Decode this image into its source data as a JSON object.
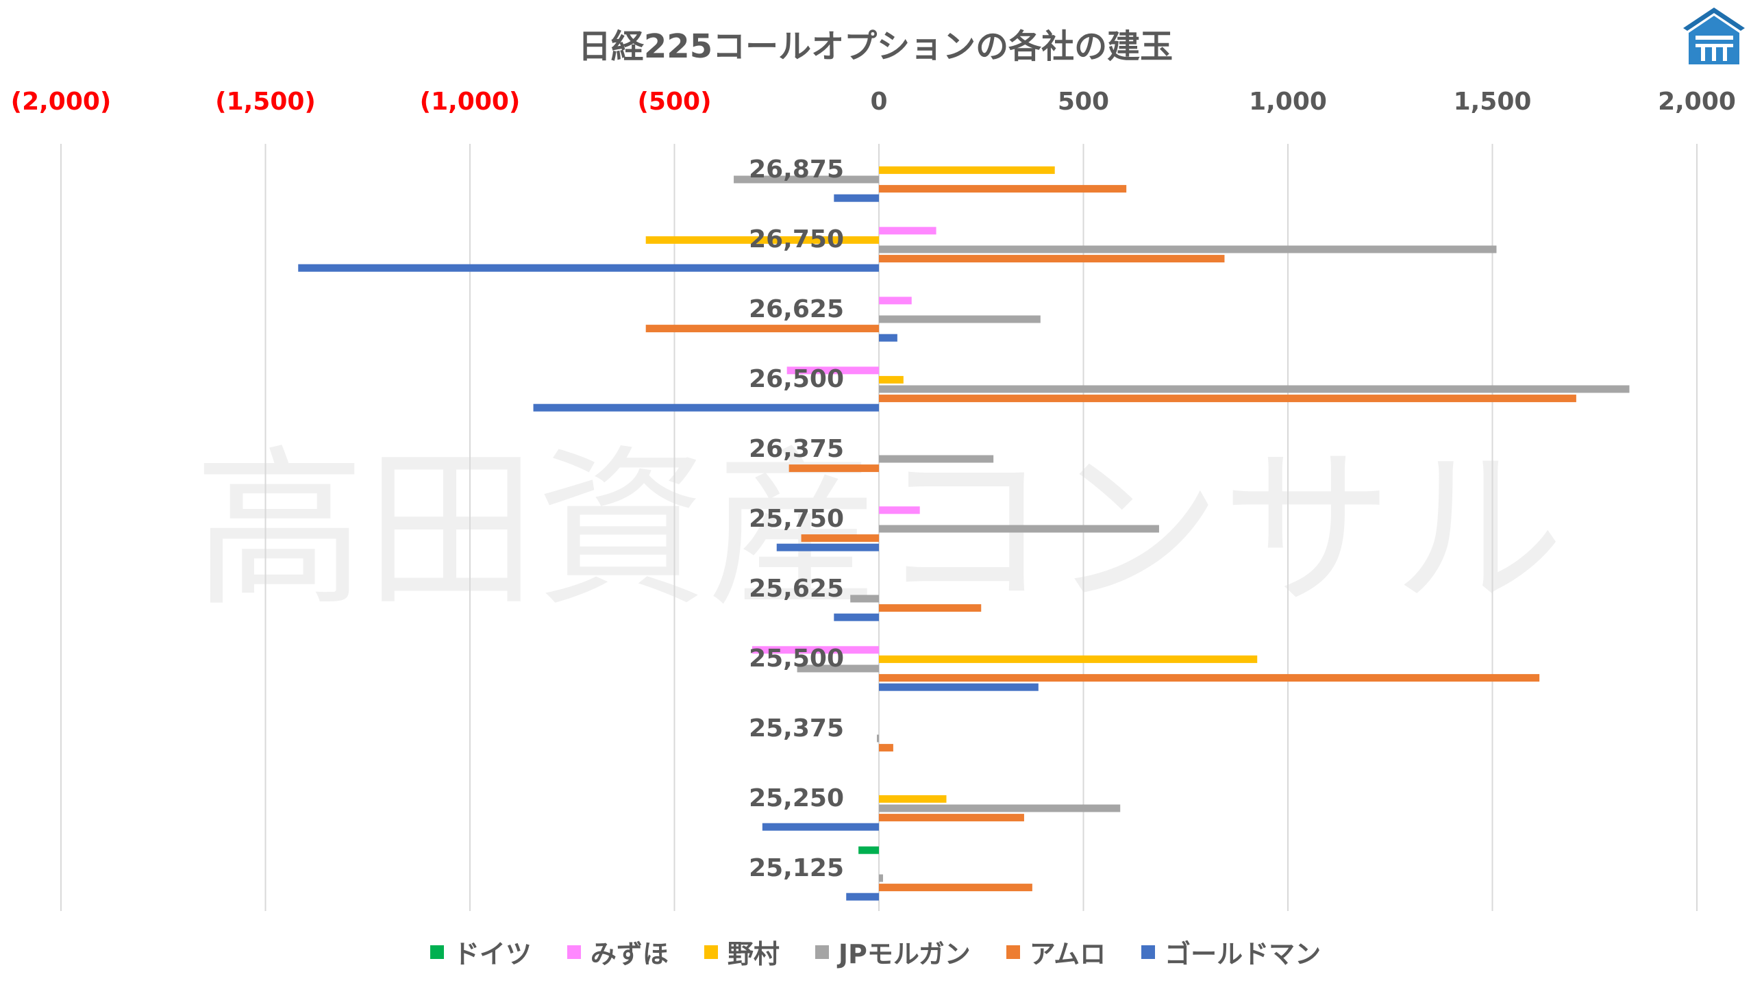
{
  "chart_data": {
    "type": "bar",
    "orientation": "horizontal",
    "title": "日経225コールオプションの各社の建玉",
    "xlim": [
      -2000,
      2000
    ],
    "x_ticks": [
      -2000,
      -1500,
      -1000,
      -500,
      0,
      500,
      1000,
      1500,
      2000
    ],
    "x_tick_labels": [
      "(2,000)",
      "(1,500)",
      "(1,000)",
      "(500)",
      "0",
      "500",
      "1,000",
      "1,500",
      "2,000"
    ],
    "negative_tick_color": "#ff0000",
    "categories": [
      "26,875",
      "26,750",
      "26,625",
      "26,500",
      "26,375",
      "25,750",
      "25,625",
      "25,500",
      "25,375",
      "25,250",
      "25,125"
    ],
    "series": [
      {
        "name": "ドイツ",
        "color": "#00b050",
        "values": [
          0,
          0,
          0,
          0,
          0,
          0,
          0,
          0,
          0,
          0,
          -50
        ]
      },
      {
        "name": "みずほ",
        "color": "#ff88ff",
        "values": [
          0,
          140,
          80,
          -225,
          0,
          100,
          0,
          -310,
          0,
          0,
          0
        ]
      },
      {
        "name": "野村",
        "color": "#ffc000",
        "values": [
          430,
          -570,
          0,
          60,
          0,
          0,
          0,
          925,
          0,
          165,
          0
        ]
      },
      {
        "name": "JPモルガン",
        "color": "#a5a5a5",
        "values": [
          -355,
          1510,
          395,
          1835,
          280,
          685,
          -70,
          -200,
          -5,
          590,
          10
        ]
      },
      {
        "name": "アムロ",
        "color": "#ed7d31",
        "values": [
          605,
          845,
          -570,
          1705,
          -220,
          -190,
          250,
          1615,
          35,
          355,
          375
        ]
      },
      {
        "name": "ゴールドマン",
        "color": "#4472c4",
        "values": [
          -110,
          -1420,
          45,
          -845,
          0,
          -250,
          -110,
          390,
          0,
          -285,
          -80
        ]
      }
    ],
    "grid": true,
    "legend_position": "bottom",
    "watermark": "高田資産コンサル"
  }
}
